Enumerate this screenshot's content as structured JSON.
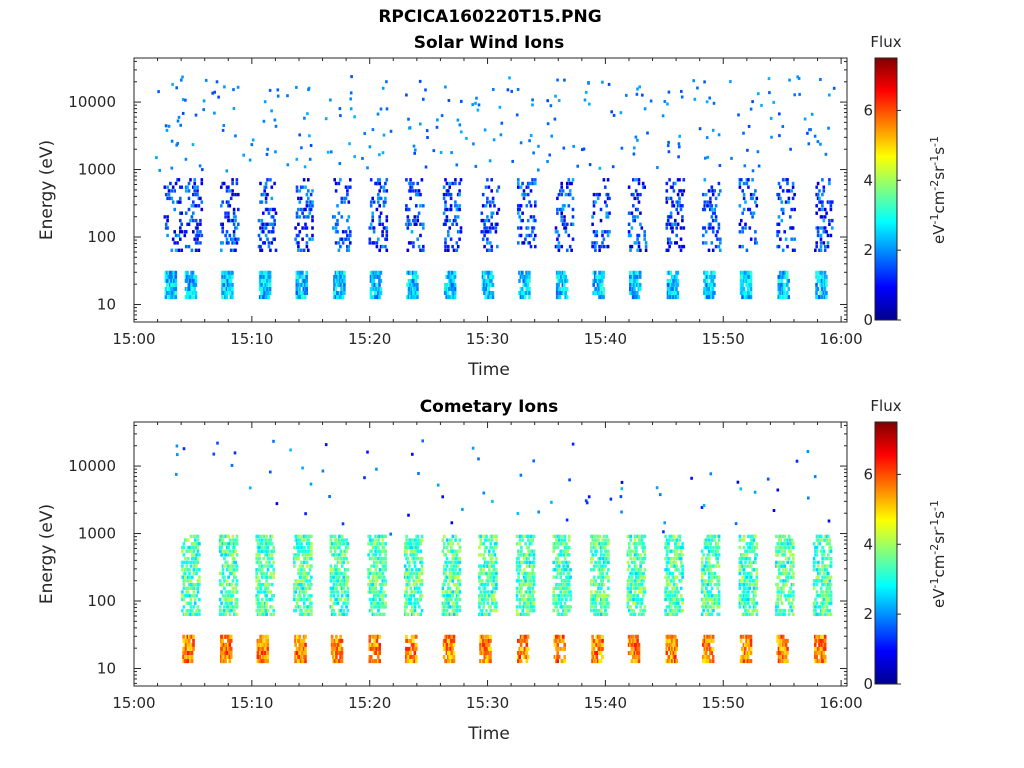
{
  "title": "RPCICA160220T15.PNG",
  "colorbar": {
    "label": "Flux",
    "ticks": [
      "0",
      "2",
      "4",
      "6"
    ],
    "tick_values": [
      0,
      2,
      4,
      6
    ],
    "range": [
      0,
      7.5
    ],
    "colormap": "jet"
  },
  "chart_data": [
    {
      "type": "heatmap",
      "title": "Solar Wind Ions",
      "xlabel": "Time",
      "ylabel": "Energy (eV)",
      "x_ticks": [
        "15:00",
        "15:10",
        "15:20",
        "15:30",
        "15:40",
        "15:50",
        "16:00"
      ],
      "y_ticks": [
        "10",
        "100",
        "1000",
        "10000"
      ],
      "y_scale": "log",
      "xlim": [
        "15:00",
        "16:00"
      ],
      "ylim": [
        5.5,
        45000
      ],
      "colorbar_label": "eV-1cm-2sr-1s-1",
      "pattern": {
        "burst_minutes": [
          3.0,
          4.7,
          7.8,
          11.0,
          14.1,
          17.3,
          20.4,
          23.5,
          26.7,
          29.9,
          33.0,
          36.2,
          39.3,
          42.4,
          45.6,
          48.7,
          51.8,
          55.0,
          58.2
        ],
        "low_energy_band_eV": [
          12,
          30
        ],
        "low_energy_flux": 2.4,
        "mid_energy_band_eV": [
          60,
          700
        ],
        "mid_energy_flux": 1.2
      }
    },
    {
      "type": "heatmap",
      "title": "Cometary Ions",
      "xlabel": "Time",
      "ylabel": "Energy (eV)",
      "x_ticks": [
        "15:00",
        "15:10",
        "15:20",
        "15:30",
        "15:40",
        "15:50",
        "16:00"
      ],
      "y_ticks": [
        "10",
        "100",
        "1000",
        "10000"
      ],
      "y_scale": "log",
      "xlim": [
        "15:00",
        "16:00"
      ],
      "ylim": [
        5.5,
        45000
      ],
      "colorbar_label": "eV-1cm-2sr-1s-1",
      "pattern": {
        "burst_minutes": [
          4.5,
          7.7,
          10.8,
          14.0,
          17.1,
          20.3,
          23.4,
          26.6,
          29.7,
          32.9,
          36.0,
          39.2,
          42.3,
          45.5,
          48.6,
          51.8,
          54.9,
          58.1
        ],
        "low_energy_band_eV": [
          12,
          28
        ],
        "low_energy_flux": 5.6,
        "mid_energy_band_eV": [
          60,
          900
        ],
        "mid_energy_flux": 3.2
      }
    }
  ]
}
